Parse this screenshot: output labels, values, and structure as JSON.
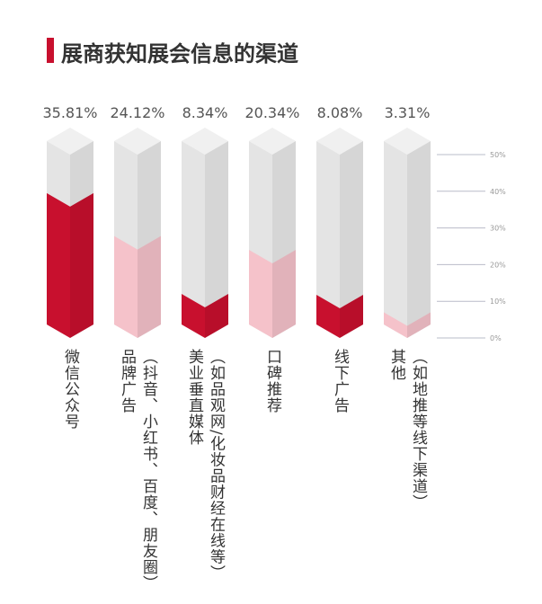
{
  "chart_data": {
    "type": "prism-bar",
    "title": "展商获知展会信息的渠道",
    "categories": [
      "微信公众号",
      "品牌广告",
      "美业垂直媒体",
      "口碑推荐",
      "线下广告",
      "其他"
    ],
    "category_notes": [
      null,
      "（抖音、小红书、百度、朋友圈）",
      "（如品观网/化妆品财经在线等）",
      null,
      null,
      "（如地推等线下渠道）"
    ],
    "values": [
      35.81,
      24.12,
      8.34,
      20.34,
      8.08,
      3.31
    ],
    "value_labels": [
      "35.81%",
      "24.12%",
      "8.34%",
      "20.34%",
      "8.08%",
      "3.31%"
    ],
    "colors": [
      "#c8102e",
      "#f5c2ca",
      "#c8102e",
      "#f5c2ca",
      "#c8102e",
      "#f5c2ca"
    ],
    "ylim": [
      0,
      50
    ],
    "yticks": [
      {
        "value": 0,
        "label": "0%"
      },
      {
        "value": 10,
        "label": "10%"
      },
      {
        "value": 20,
        "label": "20%"
      },
      {
        "value": 30,
        "label": "30%"
      },
      {
        "value": 40,
        "label": "40%"
      },
      {
        "value": 50,
        "label": "50%"
      }
    ]
  }
}
